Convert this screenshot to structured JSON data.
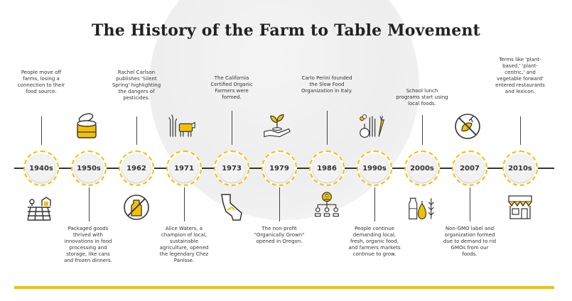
{
  "title": "The History of the Farm to Table Movement",
  "colors": {
    "accent": "#f2c200",
    "line": "#333333"
  },
  "events": [
    {
      "year": "1940s",
      "text": "People move off farms, losing a connection to their food source.",
      "position": "above",
      "icon": "farm-field-icon"
    },
    {
      "year": "1950s",
      "text": "Packaged goods thrived with innovations in food processing and storage, like cans and frozen dinners.",
      "position": "below",
      "icon": "open-can-icon"
    },
    {
      "year": "1962",
      "text": "Rachel Carlson publishes 'Silent Spring' highlighting the dangers of pesticides.",
      "position": "above",
      "icon": "no-spray-bottle-icon"
    },
    {
      "year": "1971",
      "text": "Alice Waters, a champion of local, sustainable agriculture, opened the legendary Chez Panisse.",
      "position": "below",
      "icon": "wheat-and-cow-icon"
    },
    {
      "year": "1973",
      "text": "The California Certified Organic Farmers were formed.",
      "position": "above",
      "icon": "california-map-icon"
    },
    {
      "year": "1979",
      "text": "The non-profit \"Organically Grown\" opened in Oregon.",
      "position": "below",
      "icon": "hand-holding-sprout-icon"
    },
    {
      "year": "1986",
      "text": "Carlo Perini founded the Slow Food Organization in Italy.",
      "position": "above",
      "icon": "organization-chart-icon"
    },
    {
      "year": "1990s",
      "text": "People continue demanding local, fresh, organic food, and farmers markets continue to grow.",
      "position": "below",
      "icon": "vegetables-icon"
    },
    {
      "year": "2000s",
      "text": "School lunch programs start using local foods.",
      "position": "above",
      "icon": "milk-pear-wheat-icon"
    },
    {
      "year": "2007",
      "text": "Non-GMO label and organization formed due to demand to rid GMOs from our foods.",
      "position": "below",
      "icon": "no-gmo-icon"
    },
    {
      "year": "2010s",
      "text": "Terms like 'plant-based,' 'plant-centric,' and vegetable forward' entered restaurants and lexicon.",
      "position": "above",
      "icon": "storefront-icon"
    }
  ]
}
